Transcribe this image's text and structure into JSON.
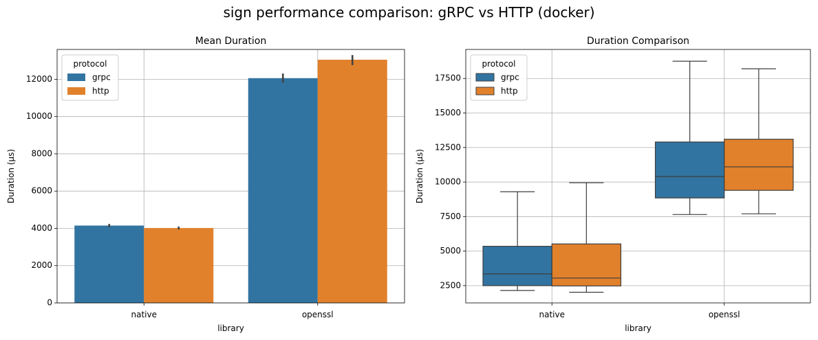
{
  "suptitle": "sign performance comparison: gRPC vs HTTP (docker)",
  "colors": {
    "grpc": "#3274a1",
    "http": "#e1812c",
    "grid": "#b0b0b0",
    "whisker": "#3d3d3d"
  },
  "chart_data": [
    {
      "type": "bar",
      "title": "Mean Duration",
      "xlabel": "library",
      "ylabel": "Duration (µs)",
      "categories": [
        "native",
        "openssl"
      ],
      "ylim": [
        0,
        13600
      ],
      "yticks": [
        "0",
        "2000",
        "4000",
        "6000",
        "8000",
        "10000",
        "12000"
      ],
      "ytick_values": [
        0,
        2000,
        4000,
        6000,
        8000,
        10000,
        12000
      ],
      "grid": true,
      "legend": {
        "title": "protocol",
        "placement": "top-left",
        "entries": [
          "grpc",
          "http"
        ]
      },
      "series": [
        {
          "name": "grpc",
          "values": [
            4150,
            12060
          ],
          "ci_low": [
            4060,
            11820
          ],
          "ci_high": [
            4240,
            12310
          ]
        },
        {
          "name": "http",
          "values": [
            4020,
            13050
          ],
          "ci_low": [
            3940,
            12760
          ],
          "ci_high": [
            4100,
            13300
          ]
        }
      ]
    },
    {
      "type": "box",
      "title": "Duration Comparison",
      "xlabel": "library",
      "ylabel": "Duration (µs)",
      "categories": [
        "native",
        "openssl"
      ],
      "ylim": [
        1250,
        19600
      ],
      "yticks": [
        "2500",
        "5000",
        "7500",
        "10000",
        "12500",
        "15000",
        "17500"
      ],
      "ytick_values": [
        2500,
        5000,
        7500,
        10000,
        12500,
        15000,
        17500
      ],
      "grid": true,
      "legend": {
        "title": "protocol",
        "placement": "top-left",
        "entries": [
          "grpc",
          "http"
        ]
      },
      "series": [
        {
          "name": "grpc",
          "boxes": [
            {
              "min": 2150,
              "q1": 2500,
              "median": 3350,
              "q3": 5350,
              "max": 9300
            },
            {
              "min": 7650,
              "q1": 8850,
              "median": 10400,
              "q3": 12900,
              "max": 18750
            }
          ]
        },
        {
          "name": "http",
          "boxes": [
            {
              "min": 2020,
              "q1": 2480,
              "median": 3050,
              "q3": 5520,
              "max": 9950
            },
            {
              "min": 7700,
              "q1": 9400,
              "median": 11100,
              "q3": 13100,
              "max": 18200
            }
          ]
        }
      ]
    }
  ]
}
